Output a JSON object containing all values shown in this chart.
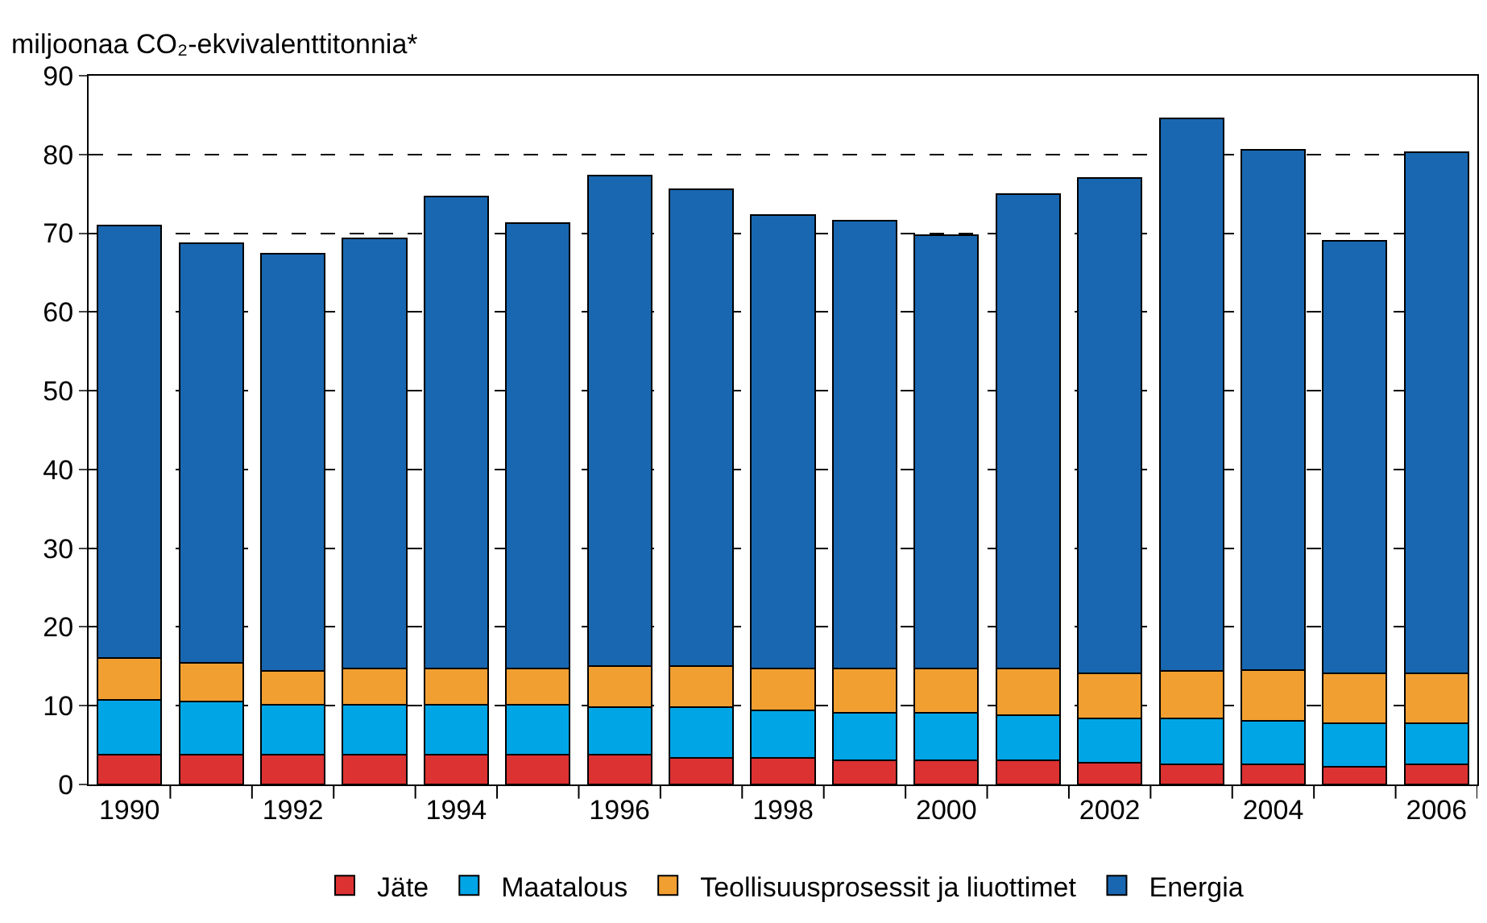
{
  "chart_data": {
    "type": "bar",
    "stacked": true,
    "ylabel": "miljoonaa CO₂-ekvivalenttitonnia*",
    "categories": [
      "1990",
      null,
      "1992",
      null,
      "1994",
      null,
      "1996",
      null,
      "1998",
      null,
      "2000",
      null,
      "2002",
      null,
      "2004",
      null,
      "2006"
    ],
    "series": [
      {
        "name": "Jäte",
        "color": "#dc3232",
        "values": [
          3.8,
          3.8,
          3.8,
          3.8,
          3.8,
          3.8,
          3.8,
          3.4,
          3.4,
          3.1,
          3.1,
          3.1,
          2.8,
          2.6,
          2.6,
          2.2,
          2.6
        ]
      },
      {
        "name": "Maatalous",
        "color": "#00a5e6",
        "values": [
          6.9,
          6.7,
          6.3,
          6.3,
          6.3,
          6.3,
          6.0,
          6.4,
          6.0,
          6.0,
          6.0,
          5.7,
          5.6,
          5.8,
          5.5,
          5.6,
          5.2
        ]
      },
      {
        "name": "Teollisuusprosessit ja liuottimet",
        "color": "#f29f32",
        "values": [
          5.4,
          4.9,
          4.3,
          4.6,
          4.6,
          4.6,
          5.2,
          5.2,
          5.3,
          5.6,
          5.6,
          5.9,
          5.7,
          6.0,
          6.4,
          6.3,
          6.3
        ]
      },
      {
        "name": "Energia",
        "color": "#1967b0",
        "values": [
          54.9,
          53.3,
          53.0,
          54.6,
          60.0,
          56.6,
          62.3,
          60.6,
          57.6,
          56.9,
          55.0,
          60.3,
          62.9,
          70.2,
          66.1,
          54.9,
          66.2
        ]
      }
    ],
    "ylim": [
      0,
      90
    ],
    "yticks": [
      0,
      10,
      20,
      30,
      40,
      50,
      60,
      70,
      80,
      90
    ],
    "grid": "y",
    "legend": "bottom"
  }
}
